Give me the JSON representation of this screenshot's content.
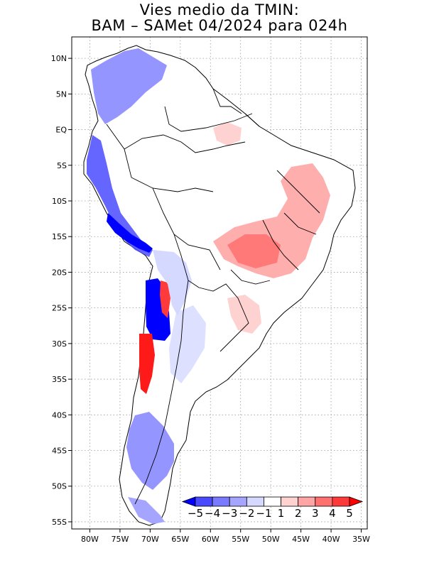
{
  "title": {
    "line1": "Vies medio da TMIN:",
    "line2": "BAM – SAMet 04/2024  para 024h"
  },
  "map": {
    "lon_range": [
      -83,
      -34
    ],
    "lat_range": [
      -56,
      13
    ],
    "x_ticks": [
      {
        "lon": -80,
        "label": "80W"
      },
      {
        "lon": -75,
        "label": "75W"
      },
      {
        "lon": -70,
        "label": "70W"
      },
      {
        "lon": -65,
        "label": "65W"
      },
      {
        "lon": -60,
        "label": "60W"
      },
      {
        "lon": -55,
        "label": "55W"
      },
      {
        "lon": -50,
        "label": "50W"
      },
      {
        "lon": -45,
        "label": "45W"
      },
      {
        "lon": -40,
        "label": "40W"
      },
      {
        "lon": -35,
        "label": "35W"
      }
    ],
    "y_ticks": [
      {
        "lat": 10,
        "label": "10N"
      },
      {
        "lat": 5,
        "label": "5N"
      },
      {
        "lat": 0,
        "label": "EQ"
      },
      {
        "lat": -5,
        "label": "5S"
      },
      {
        "lat": -10,
        "label": "10S"
      },
      {
        "lat": -15,
        "label": "15S"
      },
      {
        "lat": -20,
        "label": "20S"
      },
      {
        "lat": -25,
        "label": "25S"
      },
      {
        "lat": -30,
        "label": "30S"
      },
      {
        "lat": -35,
        "label": "35S"
      },
      {
        "lat": -40,
        "label": "40S"
      },
      {
        "lat": -45,
        "label": "45S"
      },
      {
        "lat": -50,
        "label": "50S"
      },
      {
        "lat": -55,
        "label": "55S"
      }
    ],
    "grid": true
  },
  "colorbar": {
    "labels": [
      "−5",
      "−4",
      "−3",
      "−2",
      "−1",
      "1",
      "2",
      "3",
      "4",
      "5"
    ],
    "colors": [
      "#0000ff",
      "#4a4aff",
      "#7a7aff",
      "#a5a5ff",
      "#d5d8ff",
      "#ffffff",
      "#ffd2d2",
      "#ffa5a5",
      "#ff7070",
      "#ff3a3a",
      "#ff0000"
    ]
  }
}
